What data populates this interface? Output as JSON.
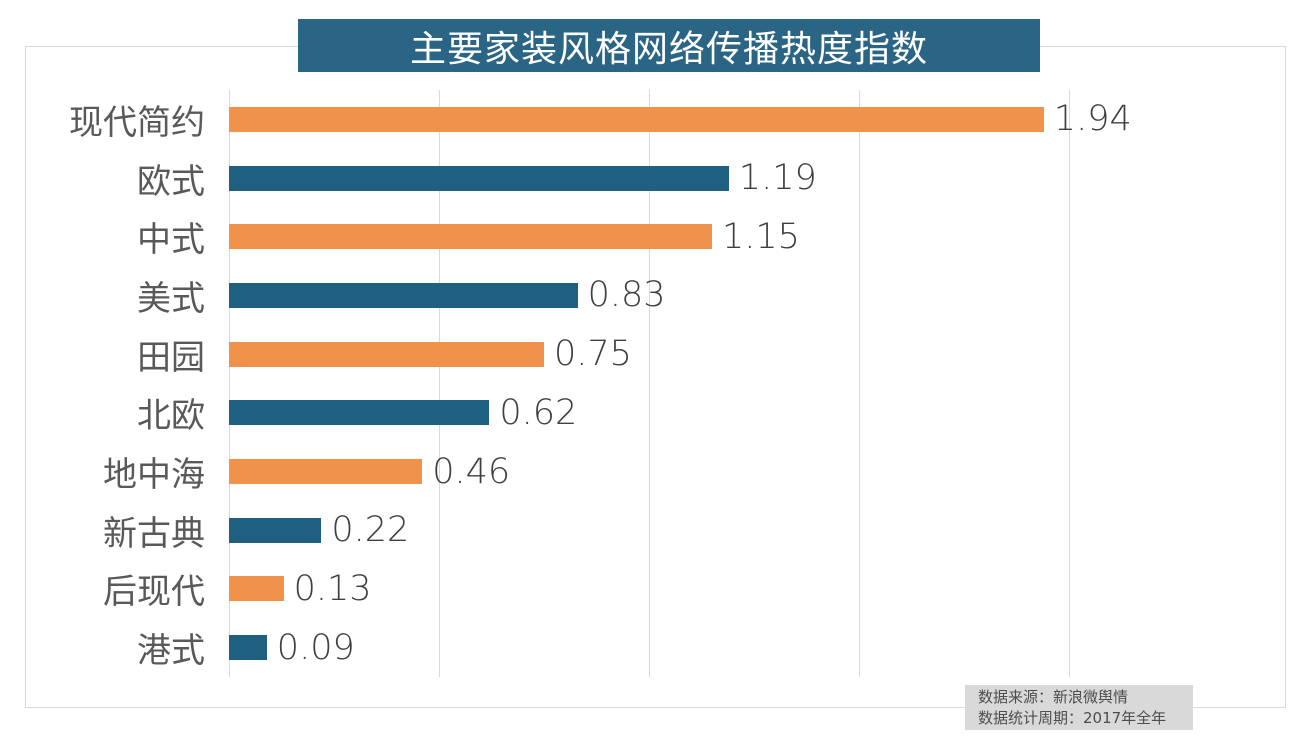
{
  "title": "主要家装风格网络传播热度指数",
  "source_note": {
    "line1": "数据来源：新浪微舆情",
    "line2": "数据统计周期：2017年全年"
  },
  "colors": {
    "banner_bg": "#2A6586",
    "bar_orange": "#F0924B",
    "bar_teal": "#1F5F7F",
    "gridline": "#D9D9D9",
    "frame_border": "#D9D9D9",
    "category_text": "#595959",
    "value_text": "#3F3F3F",
    "note_bg": "#D9D9D9",
    "note_text": "#4D4D4D"
  },
  "chart_data": {
    "type": "bar",
    "orientation": "horizontal",
    "title": "主要家装风格网络传播热度指数",
    "categories": [
      "现代简约",
      "欧式",
      "中式",
      "美式",
      "田园",
      "北欧",
      "地中海",
      "新古典",
      "后现代",
      "港式"
    ],
    "values": [
      1.94,
      1.19,
      1.15,
      0.83,
      0.75,
      0.62,
      0.46,
      0.22,
      0.13,
      0.09
    ],
    "bar_color_pattern": [
      "#F0924B",
      "#1F5F7F"
    ],
    "xlabel": "",
    "ylabel": "",
    "xlim": [
      0,
      2.0
    ],
    "grid_step": 0.5,
    "grid": true,
    "value_labels": true,
    "legend": false
  }
}
